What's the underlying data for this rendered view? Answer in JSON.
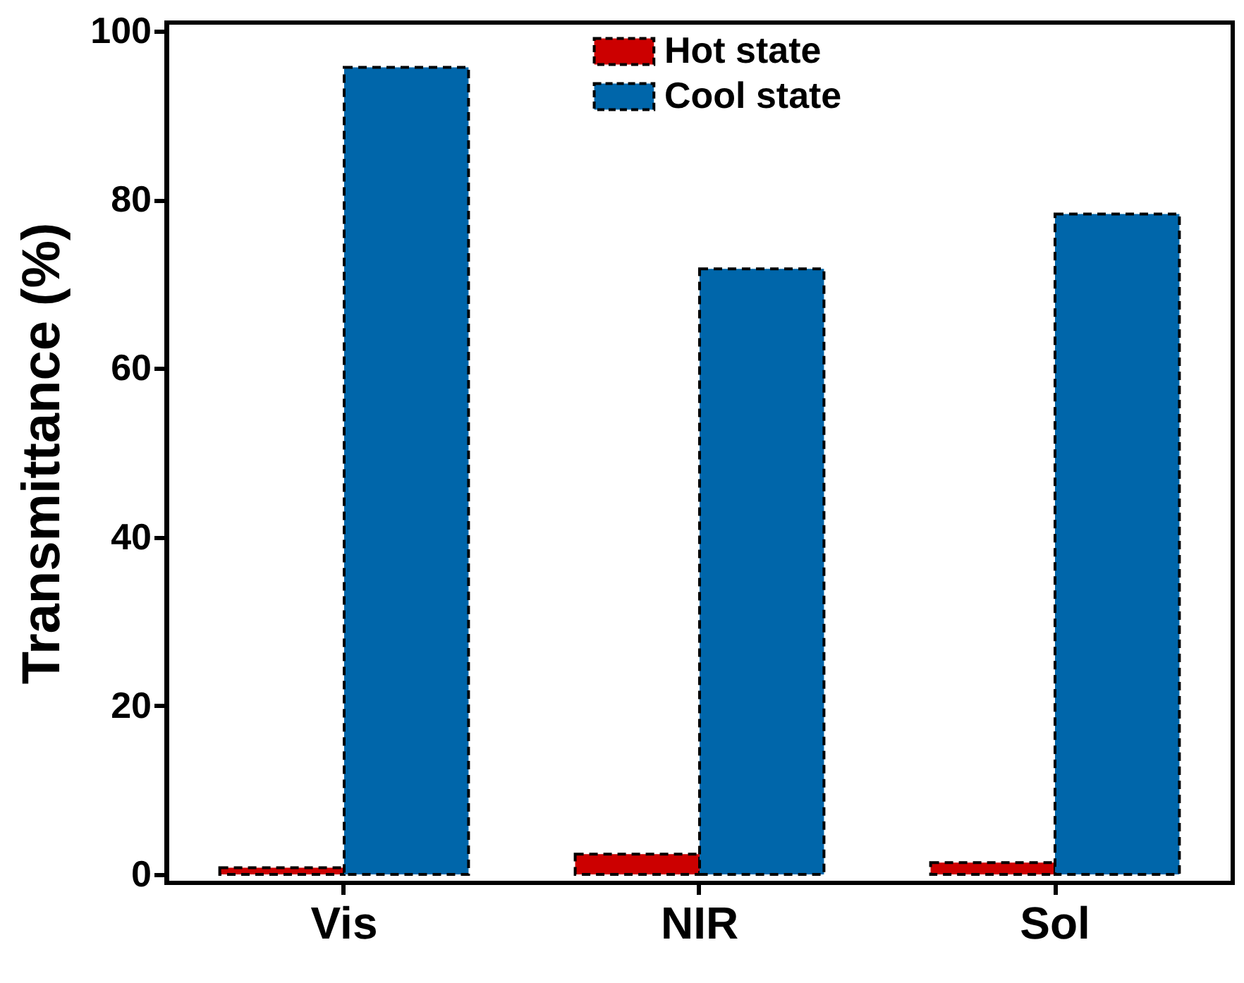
{
  "chart_data": {
    "type": "bar",
    "ylabel": "Transmittance (%)",
    "categories": [
      "Vis",
      "NIR",
      "Sol"
    ],
    "series": [
      {
        "name": "Hot state",
        "color": "#cc0000",
        "values": [
          0.8,
          2.4,
          1.4
        ]
      },
      {
        "name": "Cool state",
        "color": "#0066aa",
        "values": [
          95.7,
          71.8,
          78.3
        ]
      }
    ],
    "ylim": [
      -1,
      101
    ],
    "yticks": [
      0,
      20,
      40,
      60,
      80,
      100
    ],
    "legend": "top"
  }
}
